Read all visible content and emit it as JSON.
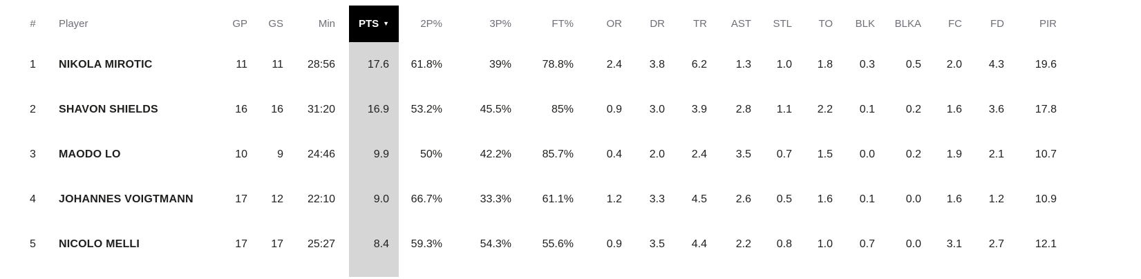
{
  "colors": {
    "page_bg": "#ffffff",
    "header_text": "#6f6f78",
    "body_text": "#1e1e1c",
    "sorted_header_bg": "#000000",
    "sorted_header_text": "#ffffff",
    "sorted_column_bg": "#d6d6d6"
  },
  "table": {
    "sorted_by": "PTS",
    "sort_direction": "desc",
    "columns": [
      {
        "key": "rank",
        "label": "#",
        "align": "center"
      },
      {
        "key": "player",
        "label": "Player",
        "align": "left"
      },
      {
        "key": "gp",
        "label": "GP",
        "align": "right"
      },
      {
        "key": "gs",
        "label": "GS",
        "align": "right"
      },
      {
        "key": "min",
        "label": "Min",
        "align": "right"
      },
      {
        "key": "pts",
        "label": "PTS",
        "align": "right",
        "sorted": true,
        "sort_icon": "▼"
      },
      {
        "key": "p2pct",
        "label": "2P%",
        "align": "right"
      },
      {
        "key": "p3pct",
        "label": "3P%",
        "align": "right"
      },
      {
        "key": "ftpct",
        "label": "FT%",
        "align": "right"
      },
      {
        "key": "or",
        "label": "OR",
        "align": "right"
      },
      {
        "key": "dr",
        "label": "DR",
        "align": "right"
      },
      {
        "key": "tr",
        "label": "TR",
        "align": "right"
      },
      {
        "key": "ast",
        "label": "AST",
        "align": "right"
      },
      {
        "key": "stl",
        "label": "STL",
        "align": "right"
      },
      {
        "key": "to",
        "label": "TO",
        "align": "right"
      },
      {
        "key": "blk",
        "label": "BLK",
        "align": "right"
      },
      {
        "key": "blka",
        "label": "BLKA",
        "align": "right"
      },
      {
        "key": "fc",
        "label": "FC",
        "align": "right"
      },
      {
        "key": "fd",
        "label": "FD",
        "align": "right"
      },
      {
        "key": "pir",
        "label": "PIR",
        "align": "right"
      }
    ],
    "rows": [
      {
        "rank": "1",
        "player": "NIKOLA MIROTIC",
        "gp": "11",
        "gs": "11",
        "min": "28:56",
        "pts": "17.6",
        "p2pct": "61.8%",
        "p3pct": "39%",
        "ftpct": "78.8%",
        "or": "2.4",
        "dr": "3.8",
        "tr": "6.2",
        "ast": "1.3",
        "stl": "1.0",
        "to": "1.8",
        "blk": "0.3",
        "blka": "0.5",
        "fc": "2.0",
        "fd": "4.3",
        "pir": "19.6"
      },
      {
        "rank": "2",
        "player": "SHAVON SHIELDS",
        "gp": "16",
        "gs": "16",
        "min": "31:20",
        "pts": "16.9",
        "p2pct": "53.2%",
        "p3pct": "45.5%",
        "ftpct": "85%",
        "or": "0.9",
        "dr": "3.0",
        "tr": "3.9",
        "ast": "2.8",
        "stl": "1.1",
        "to": "2.2",
        "blk": "0.1",
        "blka": "0.2",
        "fc": "1.6",
        "fd": "3.6",
        "pir": "17.8"
      },
      {
        "rank": "3",
        "player": "MAODO LO",
        "gp": "10",
        "gs": "9",
        "min": "24:46",
        "pts": "9.9",
        "p2pct": "50%",
        "p3pct": "42.2%",
        "ftpct": "85.7%",
        "or": "0.4",
        "dr": "2.0",
        "tr": "2.4",
        "ast": "3.5",
        "stl": "0.7",
        "to": "1.5",
        "blk": "0.0",
        "blka": "0.2",
        "fc": "1.9",
        "fd": "2.1",
        "pir": "10.7"
      },
      {
        "rank": "4",
        "player": "JOHANNES VOIGTMANN",
        "gp": "17",
        "gs": "12",
        "min": "22:10",
        "pts": "9.0",
        "p2pct": "66.7%",
        "p3pct": "33.3%",
        "ftpct": "61.1%",
        "or": "1.2",
        "dr": "3.3",
        "tr": "4.5",
        "ast": "2.6",
        "stl": "0.5",
        "to": "1.6",
        "blk": "0.1",
        "blka": "0.0",
        "fc": "1.6",
        "fd": "1.2",
        "pir": "10.9"
      },
      {
        "rank": "5",
        "player": "NICOLO MELLI",
        "gp": "17",
        "gs": "17",
        "min": "25:27",
        "pts": "8.4",
        "p2pct": "59.3%",
        "p3pct": "54.3%",
        "ftpct": "55.6%",
        "or": "0.9",
        "dr": "3.5",
        "tr": "4.4",
        "ast": "2.2",
        "stl": "0.8",
        "to": "1.0",
        "blk": "0.7",
        "blka": "0.0",
        "fc": "3.1",
        "fd": "2.7",
        "pir": "12.1"
      }
    ]
  }
}
